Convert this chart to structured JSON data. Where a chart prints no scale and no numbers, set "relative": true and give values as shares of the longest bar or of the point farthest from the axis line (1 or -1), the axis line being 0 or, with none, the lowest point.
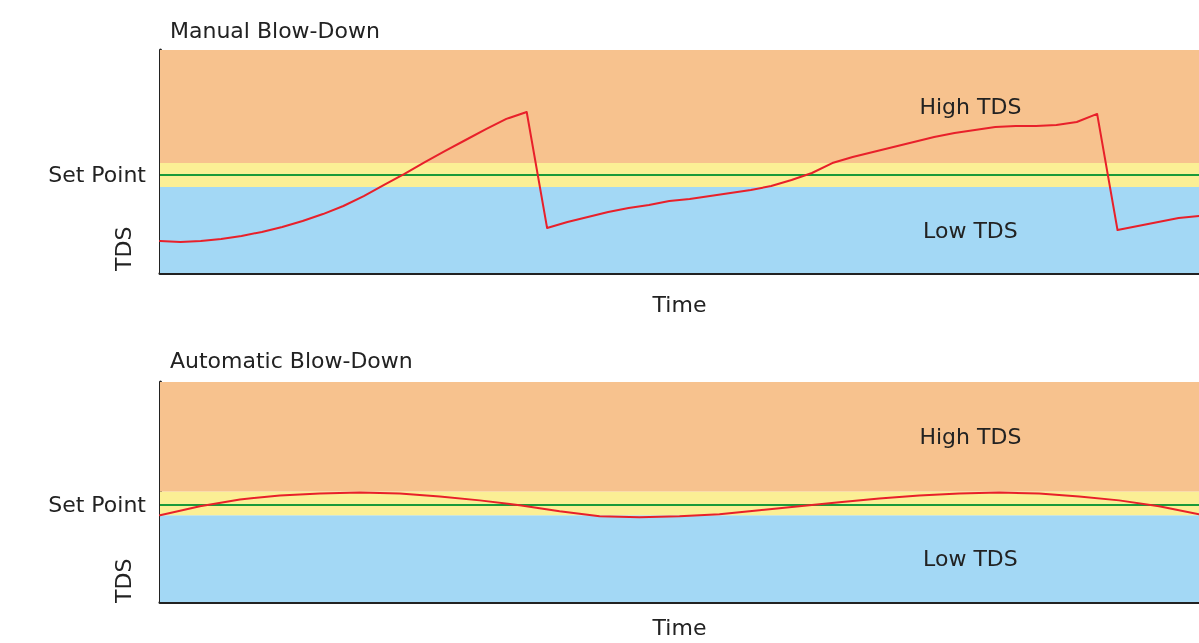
{
  "chart_data": [
    {
      "type": "line",
      "title": "Manual Blow-Down",
      "xlabel": "Time",
      "ylabel": "TDS",
      "relative": true,
      "tick_labels": false,
      "grid": false,
      "line_style": "solid",
      "categories": [
        null,
        null,
        null,
        null,
        null,
        null,
        null,
        null,
        null,
        null,
        null,
        null,
        null,
        null,
        null,
        null,
        null,
        null,
        null,
        null,
        null,
        null,
        null,
        null,
        null,
        null,
        null,
        null,
        null,
        null,
        null,
        null,
        null,
        null,
        null,
        null,
        null,
        null,
        null,
        null,
        null,
        null,
        null,
        null,
        null,
        null,
        null,
        null,
        null,
        null,
        null,
        null
      ],
      "series": [
        {
          "color": "#e8202a",
          "values": [
            0.199,
            0.193,
            0.199,
            0.211,
            0.23,
            0.255,
            0.286,
            0.323,
            0.366,
            0.416,
            0.478,
            0.547,
            0.615,
            0.689,
            0.758,
            0.826,
            0.894,
            0.957,
            1.0,
            0.28,
            0.317,
            0.348,
            0.379,
            0.404,
            0.422,
            0.447,
            0.46,
            0.478,
            0.497,
            0.516,
            0.54,
            0.578,
            0.621,
            0.683,
            0.72,
            0.752,
            0.783,
            0.814,
            0.845,
            0.87,
            0.888,
            0.907,
            0.913,
            0.913,
            0.919,
            0.938,
            0.988,
            0.267,
            0.292,
            0.317,
            0.342,
            0.354
          ]
        }
      ],
      "bands": [
        {
          "axis": "y",
          "from": 0,
          "to": 0.534,
          "label": "Low TDS",
          "color": "#a3d8f5"
        },
        {
          "axis": "y",
          "from": 0.534,
          "to": 0.683,
          "color": "#fbef95"
        },
        {
          "axis": "y",
          "from": 0.683,
          "to": 1.385,
          "label": "High TDS",
          "color": "#f7c28e"
        }
      ],
      "ref_lines": [
        {
          "axis": "y",
          "value": 0.609,
          "label": "Set Point",
          "color": "#1a9a3a",
          "line_style": "solid"
        }
      ]
    },
    {
      "type": "line",
      "title": "Automatic Blow-Down",
      "xlabel": "Time",
      "ylabel": "TDS",
      "relative": true,
      "tick_labels": false,
      "grid": false,
      "line_style": "solid",
      "categories": [
        null,
        null,
        null,
        null,
        null,
        null,
        null,
        null,
        null,
        null,
        null,
        null,
        null,
        null,
        null,
        null,
        null,
        null,
        null,
        null,
        null,
        null,
        null,
        null,
        null,
        null,
        null
      ],
      "series": [
        {
          "color": "#e8202a",
          "values": [
            0.793,
            0.874,
            0.937,
            0.973,
            0.991,
            1.0,
            0.991,
            0.964,
            0.928,
            0.883,
            0.829,
            0.784,
            0.775,
            0.784,
            0.802,
            0.838,
            0.874,
            0.91,
            0.946,
            0.973,
            0.991,
            1.0,
            0.991,
            0.964,
            0.928,
            0.874,
            0.802
          ]
        }
      ],
      "bands": [
        {
          "axis": "y",
          "from": 0,
          "to": 0.793,
          "label": "Low TDS",
          "color": "#a3d8f5"
        },
        {
          "axis": "y",
          "from": 0.793,
          "to": 1.009,
          "color": "#fbef95"
        },
        {
          "axis": "y",
          "from": 1.009,
          "to": 2.009,
          "label": "High TDS",
          "color": "#f7c28e"
        }
      ],
      "ref_lines": [
        {
          "axis": "y",
          "value": 0.892,
          "label": "Set Point",
          "color": "#1a9a3a",
          "line_style": "solid"
        }
      ]
    }
  ]
}
